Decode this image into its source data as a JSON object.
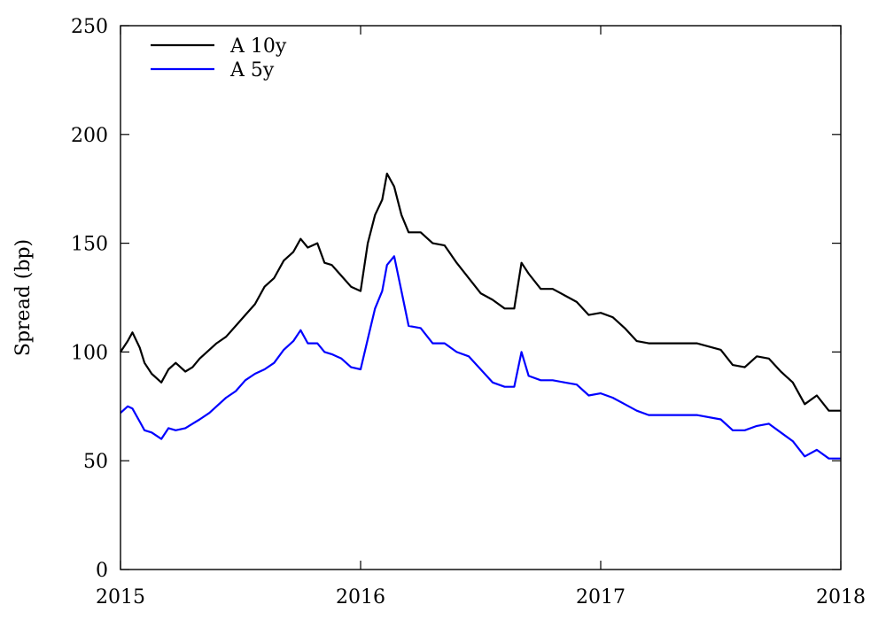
{
  "chart_data": {
    "type": "line",
    "title": "",
    "xlabel": "",
    "ylabel": "Spread (bp)",
    "xlim": [
      2015,
      2018
    ],
    "ylim": [
      0,
      250
    ],
    "x_ticks": [
      2015,
      2016,
      2017,
      2018
    ],
    "y_ticks": [
      0,
      50,
      100,
      150,
      200,
      250
    ],
    "grid": false,
    "legend_position": "top-left",
    "series": [
      {
        "name": "A 10y",
        "color": "#000000",
        "points": [
          [
            2015.0,
            100
          ],
          [
            2015.03,
            105
          ],
          [
            2015.05,
            109
          ],
          [
            2015.08,
            102
          ],
          [
            2015.1,
            95
          ],
          [
            2015.13,
            90
          ],
          [
            2015.17,
            86
          ],
          [
            2015.2,
            92
          ],
          [
            2015.23,
            95
          ],
          [
            2015.27,
            91
          ],
          [
            2015.3,
            93
          ],
          [
            2015.33,
            97
          ],
          [
            2015.37,
            101
          ],
          [
            2015.4,
            104
          ],
          [
            2015.44,
            107
          ],
          [
            2015.48,
            112
          ],
          [
            2015.52,
            117
          ],
          [
            2015.56,
            122
          ],
          [
            2015.6,
            130
          ],
          [
            2015.64,
            134
          ],
          [
            2015.68,
            142
          ],
          [
            2015.72,
            146
          ],
          [
            2015.75,
            152
          ],
          [
            2015.78,
            148
          ],
          [
            2015.82,
            150
          ],
          [
            2015.85,
            141
          ],
          [
            2015.88,
            140
          ],
          [
            2015.92,
            135
          ],
          [
            2015.96,
            130
          ],
          [
            2016.0,
            128
          ],
          [
            2016.03,
            150
          ],
          [
            2016.06,
            163
          ],
          [
            2016.09,
            170
          ],
          [
            2016.11,
            182
          ],
          [
            2016.14,
            176
          ],
          [
            2016.17,
            163
          ],
          [
            2016.2,
            155
          ],
          [
            2016.25,
            155
          ],
          [
            2016.3,
            150
          ],
          [
            2016.35,
            149
          ],
          [
            2016.4,
            141
          ],
          [
            2016.45,
            134
          ],
          [
            2016.5,
            127
          ],
          [
            2016.55,
            124
          ],
          [
            2016.6,
            120
          ],
          [
            2016.64,
            120
          ],
          [
            2016.67,
            141
          ],
          [
            2016.7,
            136
          ],
          [
            2016.75,
            129
          ],
          [
            2016.8,
            129
          ],
          [
            2016.85,
            126
          ],
          [
            2016.9,
            123
          ],
          [
            2016.95,
            117
          ],
          [
            2017.0,
            118
          ],
          [
            2017.05,
            116
          ],
          [
            2017.1,
            111
          ],
          [
            2017.15,
            105
          ],
          [
            2017.2,
            104
          ],
          [
            2017.3,
            104
          ],
          [
            2017.4,
            104
          ],
          [
            2017.5,
            101
          ],
          [
            2017.55,
            94
          ],
          [
            2017.6,
            93
          ],
          [
            2017.65,
            98
          ],
          [
            2017.7,
            97
          ],
          [
            2017.75,
            91
          ],
          [
            2017.8,
            86
          ],
          [
            2017.85,
            76
          ],
          [
            2017.9,
            80
          ],
          [
            2017.95,
            73
          ],
          [
            2018.0,
            73
          ]
        ]
      },
      {
        "name": "A 5y",
        "color": "#0000ff",
        "points": [
          [
            2015.0,
            72
          ],
          [
            2015.03,
            75
          ],
          [
            2015.05,
            74
          ],
          [
            2015.08,
            68
          ],
          [
            2015.1,
            64
          ],
          [
            2015.13,
            63
          ],
          [
            2015.17,
            60
          ],
          [
            2015.2,
            65
          ],
          [
            2015.23,
            64
          ],
          [
            2015.27,
            65
          ],
          [
            2015.3,
            67
          ],
          [
            2015.33,
            69
          ],
          [
            2015.37,
            72
          ],
          [
            2015.4,
            75
          ],
          [
            2015.44,
            79
          ],
          [
            2015.48,
            82
          ],
          [
            2015.52,
            87
          ],
          [
            2015.56,
            90
          ],
          [
            2015.6,
            92
          ],
          [
            2015.64,
            95
          ],
          [
            2015.68,
            101
          ],
          [
            2015.72,
            105
          ],
          [
            2015.75,
            110
          ],
          [
            2015.78,
            104
          ],
          [
            2015.82,
            104
          ],
          [
            2015.85,
            100
          ],
          [
            2015.88,
            99
          ],
          [
            2015.92,
            97
          ],
          [
            2015.96,
            93
          ],
          [
            2016.0,
            92
          ],
          [
            2016.03,
            106
          ],
          [
            2016.06,
            120
          ],
          [
            2016.09,
            128
          ],
          [
            2016.11,
            140
          ],
          [
            2016.14,
            144
          ],
          [
            2016.17,
            128
          ],
          [
            2016.2,
            112
          ],
          [
            2016.25,
            111
          ],
          [
            2016.3,
            104
          ],
          [
            2016.35,
            104
          ],
          [
            2016.4,
            100
          ],
          [
            2016.45,
            98
          ],
          [
            2016.5,
            92
          ],
          [
            2016.55,
            86
          ],
          [
            2016.6,
            84
          ],
          [
            2016.64,
            84
          ],
          [
            2016.67,
            100
          ],
          [
            2016.7,
            89
          ],
          [
            2016.75,
            87
          ],
          [
            2016.8,
            87
          ],
          [
            2016.85,
            86
          ],
          [
            2016.9,
            85
          ],
          [
            2016.95,
            80
          ],
          [
            2017.0,
            81
          ],
          [
            2017.05,
            79
          ],
          [
            2017.1,
            76
          ],
          [
            2017.15,
            73
          ],
          [
            2017.2,
            71
          ],
          [
            2017.3,
            71
          ],
          [
            2017.4,
            71
          ],
          [
            2017.5,
            69
          ],
          [
            2017.55,
            64
          ],
          [
            2017.6,
            64
          ],
          [
            2017.65,
            66
          ],
          [
            2017.7,
            67
          ],
          [
            2017.75,
            63
          ],
          [
            2017.8,
            59
          ],
          [
            2017.85,
            52
          ],
          [
            2017.9,
            55
          ],
          [
            2017.95,
            51
          ],
          [
            2018.0,
            51
          ]
        ]
      }
    ]
  }
}
